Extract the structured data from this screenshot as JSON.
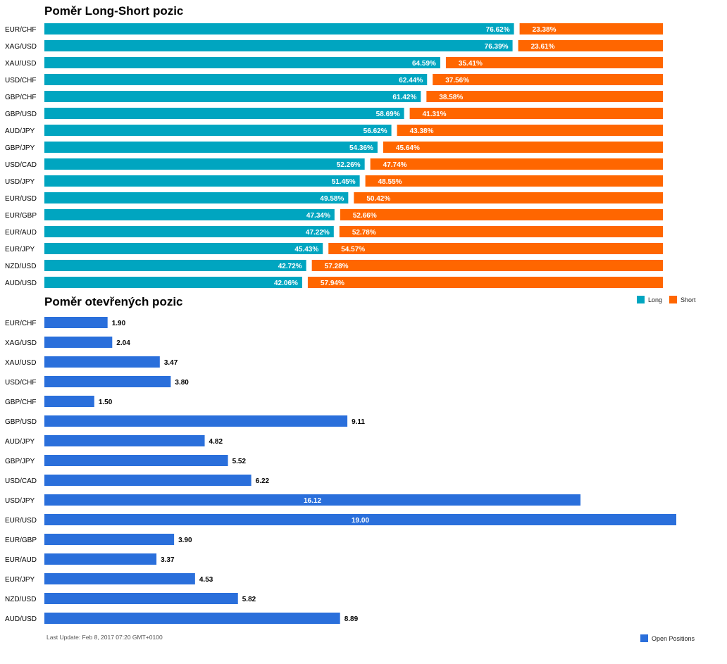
{
  "colors": {
    "long": "#00a5c0",
    "short": "#ff6600",
    "open": "#2a6fdb"
  },
  "footer": "Last Update: Feb 8, 2017 07:20 GMT+0100",
  "chart_data": [
    {
      "type": "bar",
      "stacked": true,
      "orientation": "horizontal",
      "title": "Poměr Long-Short pozic",
      "categories": [
        "EUR/CHF",
        "XAG/USD",
        "XAU/USD",
        "USD/CHF",
        "GBP/CHF",
        "GBP/USD",
        "AUD/JPY",
        "GBP/JPY",
        "USD/CAD",
        "USD/JPY",
        "EUR/USD",
        "EUR/GBP",
        "EUR/AUD",
        "EUR/JPY",
        "NZD/USD",
        "AUD/USD"
      ],
      "series": [
        {
          "name": "Long",
          "values": [
            76.62,
            76.39,
            64.59,
            62.44,
            61.42,
            58.69,
            56.62,
            54.36,
            52.26,
            51.45,
            49.58,
            47.34,
            47.22,
            45.43,
            42.72,
            42.06
          ]
        },
        {
          "name": "Short",
          "values": [
            23.38,
            23.61,
            35.41,
            37.56,
            38.58,
            41.31,
            43.38,
            45.64,
            47.74,
            48.55,
            50.42,
            52.66,
            52.78,
            54.57,
            57.28,
            57.94
          ]
        }
      ],
      "data_labels": {
        "long": [
          "76.62%",
          "76.39%",
          "64.59%",
          "62.44%",
          "61.42%",
          "58.69%",
          "56.62%",
          "54.36%",
          "52.26%",
          "51.45%",
          "49.58%",
          "47.34%",
          "47.22%",
          "45.43%",
          "42.72%",
          "42.06%"
        ],
        "short": [
          "23.38%",
          "23.61%",
          "35.41%",
          "37.56%",
          "38.58%",
          "41.31%",
          "43.38%",
          "45.64%",
          "47.74%",
          "48.55%",
          "50.42%",
          "52.66%",
          "52.78%",
          "54.57%",
          "57.28%",
          "57.94%"
        ]
      },
      "xlim": [
        0,
        100
      ],
      "legend": "bottom-right",
      "grid": false
    },
    {
      "type": "bar",
      "orientation": "horizontal",
      "title": "Poměr otevřených pozic",
      "categories": [
        "EUR/CHF",
        "XAG/USD",
        "XAU/USD",
        "USD/CHF",
        "GBP/CHF",
        "GBP/USD",
        "AUD/JPY",
        "GBP/JPY",
        "USD/CAD",
        "USD/JPY",
        "EUR/USD",
        "EUR/GBP",
        "EUR/AUD",
        "EUR/JPY",
        "NZD/USD",
        "AUD/USD"
      ],
      "series": [
        {
          "name": "Open Positions",
          "values": [
            1.9,
            2.04,
            3.47,
            3.8,
            1.5,
            9.11,
            4.82,
            5.52,
            6.22,
            16.12,
            19.0,
            3.9,
            3.37,
            4.53,
            5.82,
            8.89
          ]
        }
      ],
      "data_labels": [
        "1.90",
        "2.04",
        "3.47",
        "3.80",
        "1.50",
        "9.11",
        "4.82",
        "5.52",
        "6.22",
        "16.12",
        "19.00",
        "3.90",
        "3.37",
        "4.53",
        "5.82",
        "8.89"
      ],
      "xlim": [
        0,
        19
      ],
      "legend": "bottom-right",
      "grid": false
    }
  ]
}
